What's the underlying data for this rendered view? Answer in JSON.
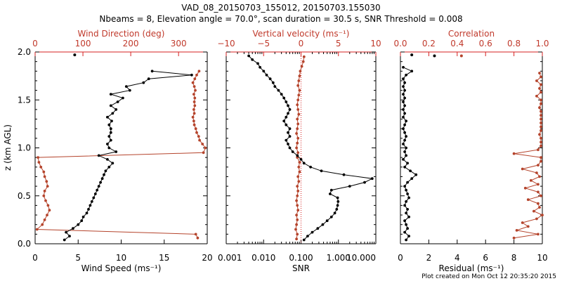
{
  "chart_data": {
    "type": "multi-panel line",
    "title_line1": "VAD_08_20150703_155012, 20150703.155030",
    "title_line2": "Nbeams = 8, Elevation angle = 70.0°, scan duration = 30.5 s, SNR Threshold = 0.008",
    "footer": "Plot created on Mon Oct 12 20:35:20 2015",
    "ylabel": "z (km AGL)",
    "ylim": [
      0.0,
      2.0
    ],
    "y_ticks": [
      "0.0",
      "0.5",
      "1.0",
      "1.5",
      "2.0"
    ],
    "colors": {
      "primary": "#000000",
      "secondary": "#b5442c",
      "axis_secondary": "#d62020"
    },
    "panels": [
      {
        "id": "wind",
        "bottom_label": "Wind Speed (ms⁻¹)",
        "top_label": "Wind Direction (deg)",
        "bottom_xlim": [
          0,
          20
        ],
        "bottom_ticks": [
          "0",
          "5",
          "10",
          "15",
          "20"
        ],
        "top_xlim": [
          0,
          360
        ],
        "top_ticks": [
          "0",
          "100",
          "200",
          "300"
        ],
        "series_bottom": {
          "name": "Wind Speed",
          "z": [
            0.04,
            0.08,
            0.12,
            0.16,
            0.2,
            0.24,
            0.28,
            0.32,
            0.36,
            0.4,
            0.44,
            0.48,
            0.52,
            0.56,
            0.6,
            0.64,
            0.68,
            0.72,
            0.76,
            0.8,
            0.84,
            0.88,
            0.92,
            0.96,
            1.0,
            1.04,
            1.08,
            1.12,
            1.16,
            1.2,
            1.24,
            1.28,
            1.32,
            1.36,
            1.4,
            1.44,
            1.48,
            1.52,
            1.56,
            1.6,
            1.64,
            1.68,
            1.72,
            1.76,
            1.8
          ],
          "x": [
            3.4,
            4.0,
            3.6,
            4.4,
            5.0,
            5.4,
            5.6,
            6.0,
            6.2,
            6.4,
            6.6,
            6.8,
            7.0,
            7.2,
            7.4,
            7.6,
            7.8,
            8.0,
            8.2,
            8.6,
            9.0,
            8.4,
            7.4,
            9.4,
            8.6,
            8.4,
            8.8,
            8.6,
            8.8,
            8.8,
            8.6,
            8.9,
            8.4,
            9.0,
            9.4,
            8.8,
            9.6,
            10.2,
            8.8,
            11.0,
            10.6,
            12.6,
            13.2,
            18.2,
            13.6
          ]
        },
        "series_top": {
          "name": "Wind Direction",
          "z": [
            0.06,
            0.1,
            0.15,
            0.2,
            0.25,
            0.3,
            0.35,
            0.4,
            0.45,
            0.5,
            0.55,
            0.6,
            0.65,
            0.7,
            0.75,
            0.8,
            0.85,
            0.9,
            0.95,
            1.0,
            1.04,
            1.08,
            1.12,
            1.16,
            1.2,
            1.24,
            1.28,
            1.32,
            1.36,
            1.4,
            1.44,
            1.48,
            1.52,
            1.56,
            1.6,
            1.64,
            1.68,
            1.72,
            1.76,
            1.8
          ],
          "x": [
            340,
            336,
            4,
            15,
            20,
            25,
            30,
            27,
            22,
            18,
            20,
            26,
            24,
            20,
            18,
            12,
            8,
            6,
            352,
            356,
            350,
            344,
            342,
            338,
            336,
            333,
            332,
            330,
            333,
            332,
            334,
            333,
            334,
            332,
            335,
            333,
            330,
            334,
            338,
            343
          ]
        }
      },
      {
        "id": "snr",
        "bottom_label": "SNR",
        "top_label": "Vertical velocity (ms⁻¹)",
        "bottom_xlim_log": [
          0.001,
          10
        ],
        "bottom_ticks": [
          "0.001",
          "0.010",
          "0.100",
          "1.000",
          "10.000"
        ],
        "top_xlim": [
          -10,
          10
        ],
        "top_ticks": [
          "−10",
          "−5",
          "0",
          "5",
          "10"
        ],
        "series_bottom": {
          "name": "SNR",
          "z": [
            0.04,
            0.08,
            0.12,
            0.16,
            0.2,
            0.24,
            0.28,
            0.32,
            0.36,
            0.4,
            0.44,
            0.48,
            0.52,
            0.56,
            0.6,
            0.64,
            0.68,
            0.72,
            0.76,
            0.8,
            0.84,
            0.88,
            0.92,
            0.96,
            1.0,
            1.04,
            1.08,
            1.12,
            1.16,
            1.2,
            1.24,
            1.28,
            1.32,
            1.36,
            1.4,
            1.44,
            1.48,
            1.52,
            1.56,
            1.6,
            1.64,
            1.68,
            1.72,
            1.76,
            1.8,
            1.84,
            1.88,
            1.92,
            1.96
          ],
          "x": [
            0.12,
            0.15,
            0.2,
            0.28,
            0.38,
            0.5,
            0.65,
            0.8,
            0.9,
            0.95,
            0.98,
            0.95,
            0.6,
            0.65,
            2.0,
            5.0,
            8.0,
            1.4,
            0.35,
            0.18,
            0.12,
            0.1,
            0.08,
            0.06,
            0.05,
            0.045,
            0.04,
            0.05,
            0.045,
            0.05,
            0.04,
            0.035,
            0.04,
            0.045,
            0.05,
            0.045,
            0.04,
            0.035,
            0.03,
            0.025,
            0.02,
            0.018,
            0.015,
            0.012,
            0.01,
            0.008,
            0.007,
            0.005,
            0.004
          ]
        },
        "series_top": {
          "name": "Vertical velocity",
          "z": [
            0.05,
            0.1,
            0.15,
            0.2,
            0.25,
            0.3,
            0.35,
            0.4,
            0.45,
            0.5,
            0.55,
            0.6,
            0.65,
            0.7,
            0.75,
            0.8,
            0.85,
            0.9,
            0.95,
            1.0,
            1.05,
            1.1,
            1.15,
            1.2,
            1.25,
            1.3,
            1.35,
            1.4,
            1.45,
            1.5,
            1.55,
            1.6,
            1.65,
            1.7,
            1.75,
            1.8,
            1.85,
            1.9,
            1.95
          ],
          "x": [
            -0.6,
            -0.5,
            -0.7,
            -0.6,
            -0.5,
            -0.6,
            -0.4,
            -0.5,
            -0.6,
            -0.5,
            -0.4,
            -0.5,
            -0.3,
            -0.4,
            -0.2,
            -0.3,
            -0.2,
            -0.5,
            -0.4,
            -0.6,
            -0.5,
            -0.4,
            -0.6,
            -0.5,
            -0.4,
            -0.5,
            -0.3,
            -0.4,
            -0.5,
            -0.4,
            -0.3,
            -0.2,
            -0.4,
            -0.3,
            -0.2,
            -0.1,
            0.1,
            0.3,
            0.4
          ]
        }
      },
      {
        "id": "residual",
        "bottom_label": "Residual (ms⁻¹)",
        "top_label": "Correlation",
        "bottom_xlim": [
          0,
          10
        ],
        "bottom_ticks": [
          "0",
          "2",
          "4",
          "6",
          "8",
          "10"
        ],
        "top_xlim": [
          0,
          1
        ],
        "top_ticks": [
          "0.0",
          "0.2",
          "0.4",
          "0.6",
          "0.8",
          "1.0"
        ],
        "series_bottom": {
          "name": "Residual",
          "z": [
            0.04,
            0.08,
            0.12,
            0.16,
            0.2,
            0.24,
            0.28,
            0.32,
            0.36,
            0.4,
            0.44,
            0.48,
            0.52,
            0.56,
            0.6,
            0.64,
            0.68,
            0.72,
            0.76,
            0.8,
            0.84,
            0.88,
            0.92,
            0.96,
            1.0,
            1.04,
            1.08,
            1.12,
            1.16,
            1.2,
            1.24,
            1.28,
            1.32,
            1.36,
            1.4,
            1.44,
            1.48,
            1.52,
            1.56,
            1.6,
            1.64,
            1.68,
            1.72,
            1.76,
            1.8,
            1.84
          ],
          "x": [
            0.4,
            0.6,
            0.3,
            0.5,
            0.4,
            0.3,
            0.6,
            0.4,
            0.5,
            0.3,
            0.4,
            0.6,
            0.5,
            0.4,
            0.3,
            0.5,
            0.8,
            1.1,
            0.7,
            0.3,
            0.5,
            0.2,
            0.4,
            0.3,
            0.4,
            0.2,
            0.3,
            0.4,
            0.3,
            0.2,
            0.3,
            0.4,
            0.2,
            0.3,
            0.2,
            0.3,
            0.2,
            0.3,
            0.2,
            0.3,
            0.2,
            0.3,
            0.2,
            0.4,
            0.8,
            0.2
          ]
        },
        "series_top": {
          "name": "Correlation",
          "z": [
            0.06,
            0.1,
            0.14,
            0.18,
            0.22,
            0.26,
            0.3,
            0.34,
            0.38,
            0.42,
            0.46,
            0.5,
            0.54,
            0.58,
            0.62,
            0.66,
            0.7,
            0.74,
            0.78,
            0.82,
            0.86,
            0.9,
            0.94,
            0.98,
            1.02,
            1.06,
            1.1,
            1.14,
            1.18,
            1.22,
            1.26,
            1.3,
            1.34,
            1.38,
            1.42,
            1.46,
            1.5,
            1.54,
            1.58,
            1.62,
            1.66,
            1.7,
            1.74,
            1.78
          ],
          "x": [
            0.8,
            0.97,
            0.82,
            0.9,
            0.86,
            0.96,
            1.0,
            0.94,
            0.98,
            0.97,
            0.9,
            0.99,
            0.97,
            0.88,
            0.97,
            0.92,
            0.98,
            0.96,
            0.86,
            0.97,
            0.99,
            0.99,
            0.8,
            0.97,
            0.99,
            0.99,
            0.99,
            0.98,
            0.99,
            0.99,
            0.99,
            0.99,
            0.99,
            0.99,
            0.98,
            0.99,
            0.99,
            0.96,
            0.99,
            0.98,
            0.99,
            0.96,
            0.99,
            0.98
          ]
        },
        "outliers_bottom": [
          {
            "x": 0.8,
            "z": 1.97
          },
          {
            "x": 2.4,
            "z": 1.96
          }
        ],
        "outliers_top": [
          {
            "x": 0.43,
            "z": 1.96
          }
        ]
      }
    ],
    "wind_outliers": [
      {
        "x": 4.6,
        "z": 1.97
      }
    ]
  }
}
